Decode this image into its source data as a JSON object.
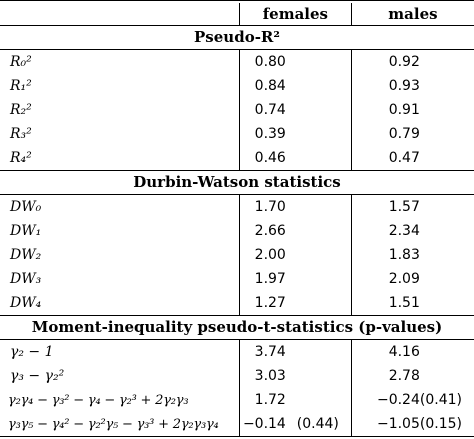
{
  "table": {
    "columns": [
      "",
      "females",
      "males"
    ],
    "sections": [
      {
        "title": "Pseudo-R²",
        "rows": [
          {
            "label": "R₀²",
            "females": "0.80",
            "females_p": "",
            "males": "0.92",
            "males_p": ""
          },
          {
            "label": "R₁²",
            "females": "0.84",
            "females_p": "",
            "males": "0.93",
            "males_p": ""
          },
          {
            "label": "R₂²",
            "females": "0.74",
            "females_p": "",
            "males": "0.91",
            "males_p": ""
          },
          {
            "label": "R₃²",
            "females": "0.39",
            "females_p": "",
            "males": "0.79",
            "males_p": ""
          },
          {
            "label": "R₄²",
            "females": "0.46",
            "females_p": "",
            "males": "0.47",
            "males_p": ""
          }
        ]
      },
      {
        "title": "Durbin-Watson statistics",
        "rows": [
          {
            "label": "DW₀",
            "females": "1.70",
            "females_p": "",
            "males": "1.57",
            "males_p": ""
          },
          {
            "label": "DW₁",
            "females": "2.66",
            "females_p": "",
            "males": "2.34",
            "males_p": ""
          },
          {
            "label": "DW₂",
            "females": "2.00",
            "females_p": "",
            "males": "1.83",
            "males_p": ""
          },
          {
            "label": "DW₃",
            "females": "1.97",
            "females_p": "",
            "males": "2.09",
            "males_p": ""
          },
          {
            "label": "DW₄",
            "females": "1.27",
            "females_p": "",
            "males": "1.51",
            "males_p": ""
          }
        ]
      },
      {
        "title": "Moment-inequality pseudo-t-statistics (p-values)",
        "rows": [
          {
            "label": "γ₂ − 1",
            "females": "3.74",
            "females_p": "",
            "males": "4.16",
            "males_p": ""
          },
          {
            "label": "γ₃ − γ₂²",
            "females": "3.03",
            "females_p": "",
            "males": "2.78",
            "males_p": ""
          },
          {
            "label": "γ₂γ₄ − γ₃² − γ₄ − γ₂³ + 2γ₂γ₃",
            "females": "1.72",
            "females_p": "",
            "males": "−0.24",
            "males_p": "(0.41)"
          },
          {
            "label": "γ₃γ₅ − γ₄² − γ₂²γ₅ − γ₃³ + 2γ₂γ₃γ₄",
            "females": "−0.14",
            "females_p": "(0.44)",
            "males": "−1.05",
            "males_p": "(0.15)"
          }
        ]
      }
    ]
  }
}
